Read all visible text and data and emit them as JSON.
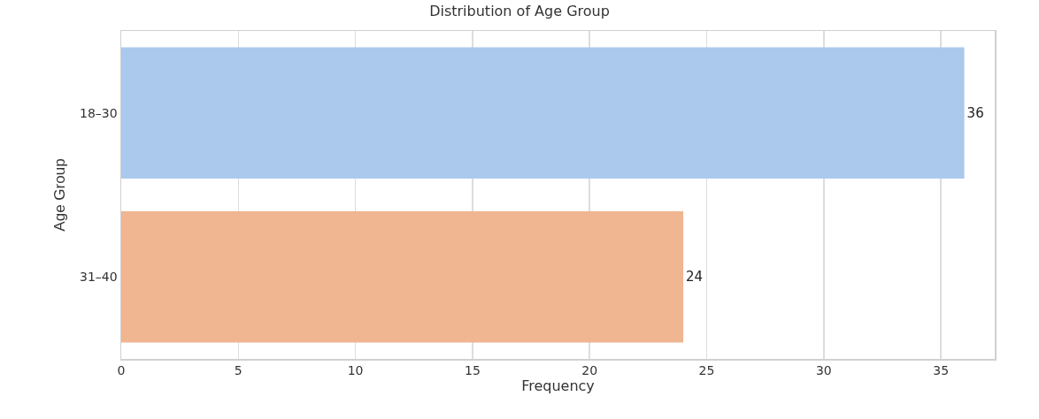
{
  "chart_data": {
    "type": "bar",
    "orientation": "horizontal",
    "title": "Distribution of Age Group",
    "xlabel": "Frequency",
    "ylabel": "Age Group",
    "categories": [
      "18–30",
      "31–40"
    ],
    "values": [
      36,
      24
    ],
    "colors": [
      "#abc9ec",
      "#f0b591"
    ],
    "xlim": [
      0,
      37.3
    ],
    "xticks": [
      0,
      5,
      10,
      15,
      20,
      25,
      30,
      35
    ],
    "grid": "x",
    "data_labels": true
  }
}
